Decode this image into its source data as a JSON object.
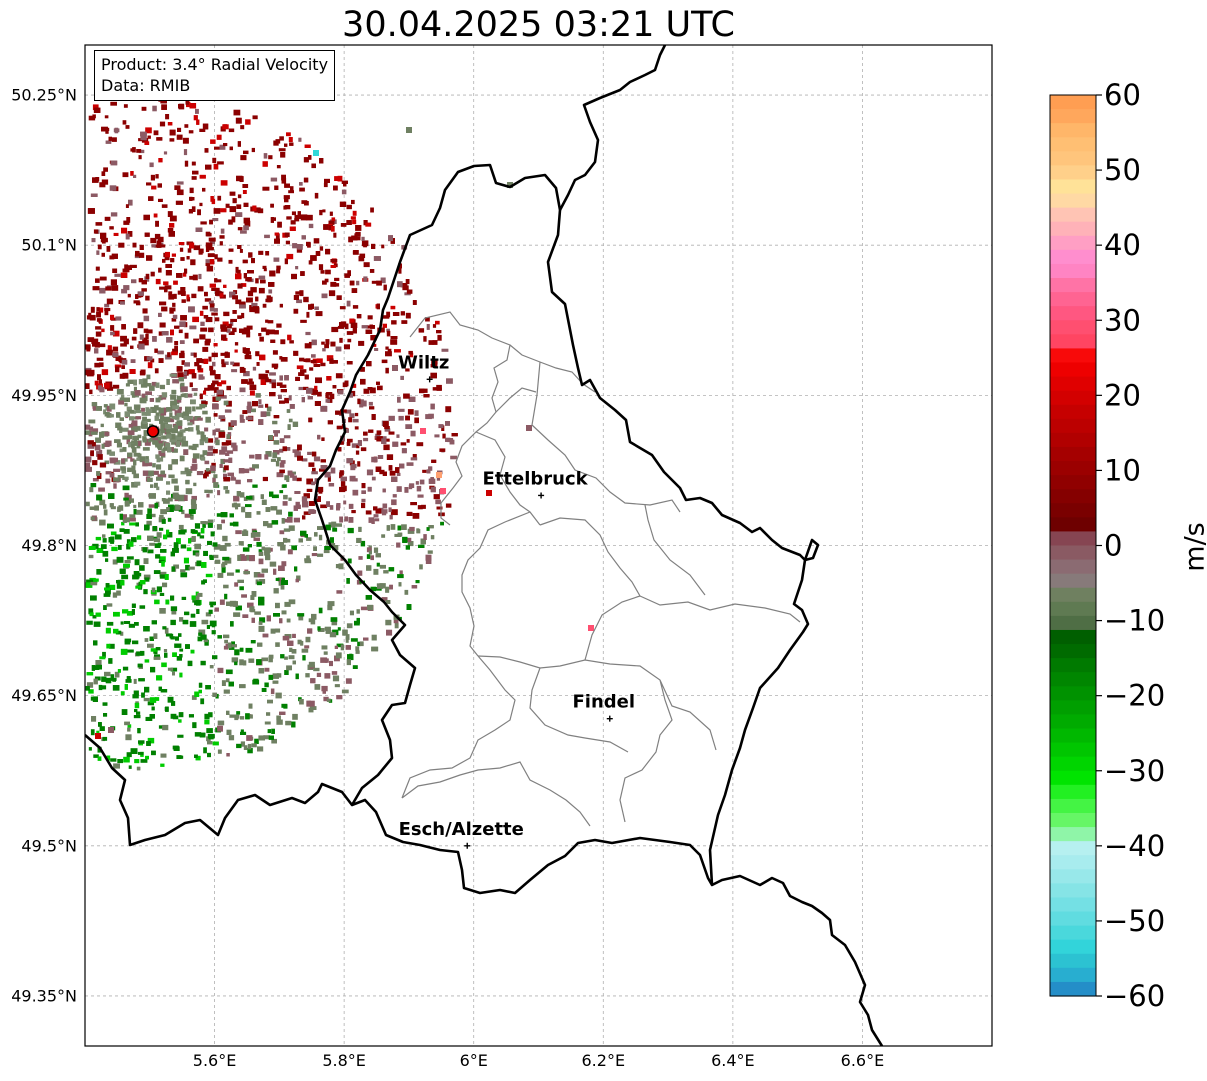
{
  "title": "30.04.2025 03:21 UTC",
  "info_box": {
    "product": "Product: 3.4° Radial Velocity",
    "data": "Data: RMIB"
  },
  "map": {
    "lon_range": [
      5.4,
      6.8
    ],
    "lat_range": [
      49.3,
      50.3
    ],
    "lat_ticks": [
      {
        "value": 50.25,
        "label": "50.25°N"
      },
      {
        "value": 50.1,
        "label": "50.1°N"
      },
      {
        "value": 49.95,
        "label": "49.95°N"
      },
      {
        "value": 49.8,
        "label": "49.8°N"
      },
      {
        "value": 49.65,
        "label": "49.65°N"
      },
      {
        "value": 49.5,
        "label": "49.5°N"
      },
      {
        "value": 49.35,
        "label": "49.35°N"
      }
    ],
    "lon_ticks": [
      {
        "value": 5.6,
        "label": "5.6°E"
      },
      {
        "value": 5.8,
        "label": "5.8°E"
      },
      {
        "value": 6.0,
        "label": "6°E"
      },
      {
        "value": 6.2,
        "label": "6.2°E"
      },
      {
        "value": 6.4,
        "label": "6.4°E"
      },
      {
        "value": 6.6,
        "label": "6.6°E"
      }
    ],
    "radar_site": {
      "lon": 5.505,
      "lat": 49.914
    },
    "cities": [
      {
        "name": "Wiltz",
        "lon": 5.932,
        "lat": 49.966
      },
      {
        "name": "Ettelbruck",
        "lon": 6.104,
        "lat": 49.85
      },
      {
        "name": "Findel",
        "lon": 6.21,
        "lat": 49.627
      },
      {
        "name": "Esch/Alzette",
        "lon": 5.99,
        "lat": 49.5
      }
    ]
  },
  "colorbar": {
    "unit": "m/s",
    "min": -60,
    "max": 60,
    "ticks": [
      {
        "value": 60,
        "label": "60"
      },
      {
        "value": 50,
        "label": "50"
      },
      {
        "value": 40,
        "label": "40"
      },
      {
        "value": 30,
        "label": "30"
      },
      {
        "value": 20,
        "label": "20"
      },
      {
        "value": 10,
        "label": "10"
      },
      {
        "value": 0,
        "label": "0"
      },
      {
        "value": -10,
        "label": "−10"
      },
      {
        "value": -20,
        "label": "−20"
      },
      {
        "value": -30,
        "label": "−30"
      },
      {
        "value": -40,
        "label": "−40"
      },
      {
        "value": -50,
        "label": "−50"
      },
      {
        "value": -60,
        "label": "−60"
      }
    ],
    "colors_top_to_bottom": [
      "#ff9e52",
      "#ffa75c",
      "#ffb669",
      "#ffbf73",
      "#ffc57c",
      "#ffd08a",
      "#ffe298",
      "#ffd9a4",
      "#ffc4b4",
      "#ffb2b8",
      "#ff9fc4",
      "#ff8ece",
      "#ff84c3",
      "#ff73a6",
      "#ff6492",
      "#ff5781",
      "#ff4f70",
      "#ff4562",
      "#f80a0a",
      "#ee0000",
      "#e00000",
      "#d30000",
      "#c60000",
      "#bc0000",
      "#b10000",
      "#a50000",
      "#9b0000",
      "#900000",
      "#850000",
      "#7a0000",
      "#6e0000",
      "#864552",
      "#8a5a63",
      "#8b6b72",
      "#877a7a",
      "#6f8060",
      "#5f7a52",
      "#4f6e45",
      "#005f00",
      "#006b00",
      "#007a00",
      "#008600",
      "#009200",
      "#009f00",
      "#00ab00",
      "#00b800",
      "#00c600",
      "#00d500",
      "#00e400",
      "#22f022",
      "#44f444",
      "#66f666",
      "#8ff5a8",
      "#b6f0f0",
      "#a8ecee",
      "#98e8ea",
      "#86e4e6",
      "#74e0e4",
      "#60dce0",
      "#4ad8dc",
      "#32d4da",
      "#2cc2d2",
      "#28aed0",
      "#248ec8"
    ],
    "scatter_palette": {
      "dark_red": "#8b0000",
      "red": "#cc0000",
      "mauve": "#8c5a64",
      "grey_green": "#6f8062",
      "green": "#008000",
      "bright_green": "#00cc00",
      "pink": "#ff4f70"
    }
  }
}
